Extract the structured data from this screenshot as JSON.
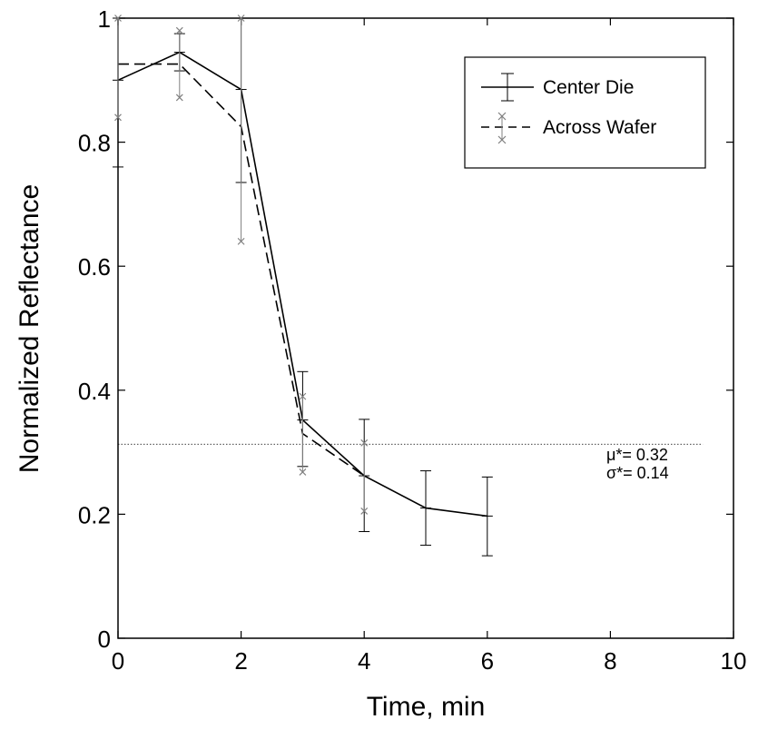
{
  "chart_data": {
    "type": "line",
    "title": "",
    "xlabel": "Time, min",
    "ylabel": "Normalized Reflectance",
    "xlim": [
      0,
      10
    ],
    "ylim": [
      0,
      1
    ],
    "x_ticks": [
      0,
      2,
      4,
      6,
      8,
      10
    ],
    "x_tick_labels": [
      "0",
      "2",
      "4",
      "6",
      "8",
      "10"
    ],
    "y_ticks": [
      0,
      0.2,
      0.4,
      0.6,
      0.8,
      1
    ],
    "y_tick_labels": [
      "0",
      "0.2",
      "0.4",
      "0.6",
      "0.8",
      "1"
    ],
    "grid": false,
    "legend_position": "top-right",
    "series": [
      {
        "name": "Center Die",
        "line_style": "solid",
        "marker": "bar",
        "color": "#000000",
        "x": [
          0,
          1,
          2,
          3,
          4,
          5,
          6
        ],
        "y": [
          0.9,
          0.945,
          0.885,
          0.352,
          0.262,
          0.21,
          0.197
        ],
        "err_low": [
          0.76,
          0.915,
          0.735,
          0.277,
          0.172,
          0.15,
          0.133
        ],
        "err_high": [
          1.0,
          0.975,
          1.0,
          0.43,
          0.353,
          0.27,
          0.26
        ]
      },
      {
        "name": "Across Wafer",
        "line_style": "dashed",
        "marker": "x",
        "color": "#000000",
        "marker_color": "#808080",
        "x": [
          0,
          1,
          2,
          3,
          4
        ],
        "y": [
          0.926,
          0.926,
          0.825,
          0.33,
          0.262
        ],
        "err_low": [
          0.84,
          0.872,
          0.64,
          0.268,
          0.205
        ],
        "err_high": [
          1.0,
          0.98,
          1.0,
          0.39,
          0.315
        ]
      }
    ],
    "reference_line": {
      "y": 0.313,
      "x_range": [
        0,
        9.5
      ],
      "line_style": "dotted"
    },
    "annotations": [
      "μ*= 0.32",
      "σ*= 0.14"
    ]
  }
}
